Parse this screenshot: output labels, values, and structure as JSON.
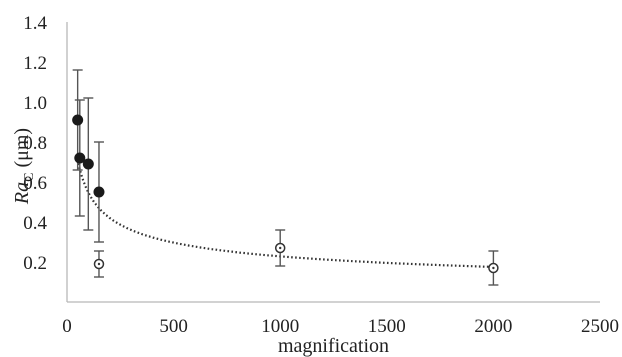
{
  "chart_data": {
    "type": "scatter",
    "xlabel": "magnification",
    "ylabel_main": "Ra",
    "ylabel_sub": "C",
    "ylabel_unit": " (μm)",
    "xlim": [
      0,
      2500
    ],
    "ylim": [
      0,
      1.4
    ],
    "x_ticks": [
      "0",
      "500",
      "1000",
      "1500",
      "2000",
      "2500"
    ],
    "y_ticks": [
      "0.2",
      "0.4",
      "0.6",
      "0.8",
      "1.0",
      "1.2",
      "1.4"
    ],
    "grid": false,
    "legend": "none",
    "series": [
      {
        "marker": "filled-circle",
        "points": [
          {
            "x": 50,
            "y": 0.91,
            "err": 0.25
          },
          {
            "x": 60,
            "y": 0.72,
            "err": 0.29
          },
          {
            "x": 100,
            "y": 0.69,
            "err": 0.33
          },
          {
            "x": 150,
            "y": 0.55,
            "err": 0.25
          }
        ]
      },
      {
        "marker": "open-circle",
        "points": [
          {
            "x": 150,
            "y": 0.19,
            "err": 0.065
          },
          {
            "x": 1000,
            "y": 0.27,
            "err": 0.09
          },
          {
            "x": 2000,
            "y": 0.17,
            "err": 0.085
          }
        ]
      }
    ],
    "trendline": {
      "style": "dotted",
      "type": "power",
      "a": 3.15,
      "b": -0.38
    }
  }
}
